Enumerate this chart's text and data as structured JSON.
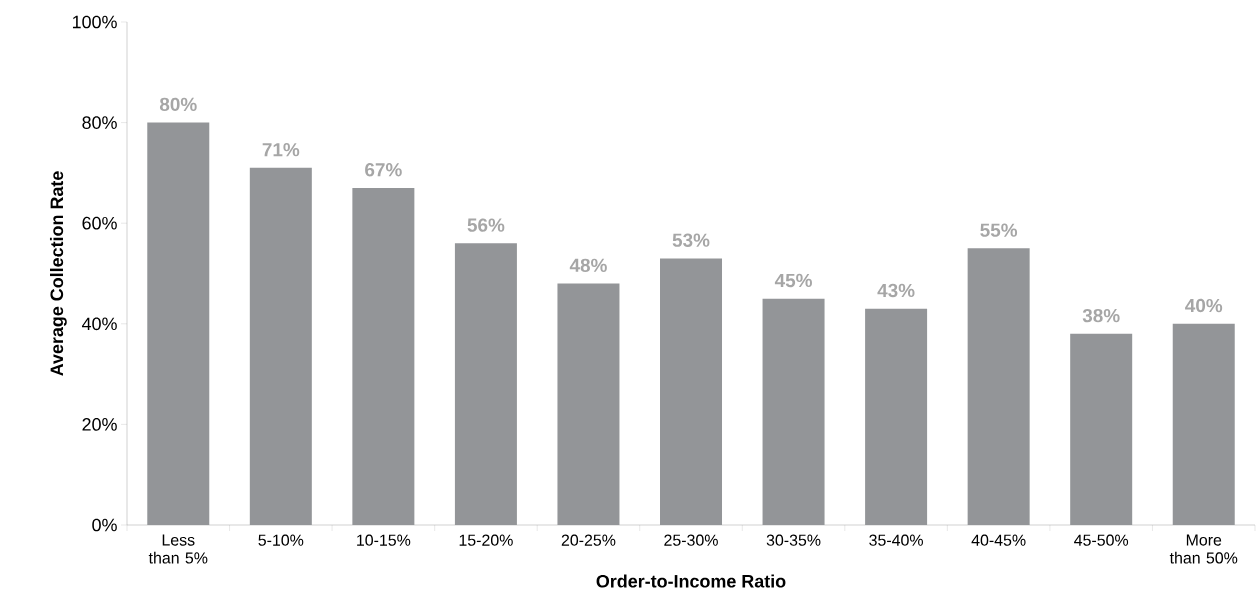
{
  "chart_data": {
    "type": "bar",
    "xlabel": "Order-to-Income Ratio",
    "ylabel": "Average Collection Rate",
    "categories": [
      "Less than 5%",
      "5-10%",
      "10-15%",
      "15-20%",
      "20-25%",
      "25-30%",
      "30-35%",
      "35-40%",
      "40-45%",
      "45-50%",
      "More than 50%"
    ],
    "values": [
      80,
      71,
      67,
      56,
      48,
      53,
      45,
      43,
      55,
      38,
      40
    ],
    "value_labels": [
      "80%",
      "71%",
      "67%",
      "56%",
      "48%",
      "53%",
      "45%",
      "43%",
      "55%",
      "38%",
      "40%"
    ],
    "color": "#939598",
    "ylim": [
      0,
      100
    ],
    "yticks": [
      {
        "value": 0,
        "label": "0%"
      },
      {
        "value": 20,
        "label": "20%"
      },
      {
        "value": 40,
        "label": "40%"
      },
      {
        "value": 60,
        "label": "60%"
      },
      {
        "value": 80,
        "label": "80%"
      },
      {
        "value": 100,
        "label": "100%"
      }
    ]
  }
}
